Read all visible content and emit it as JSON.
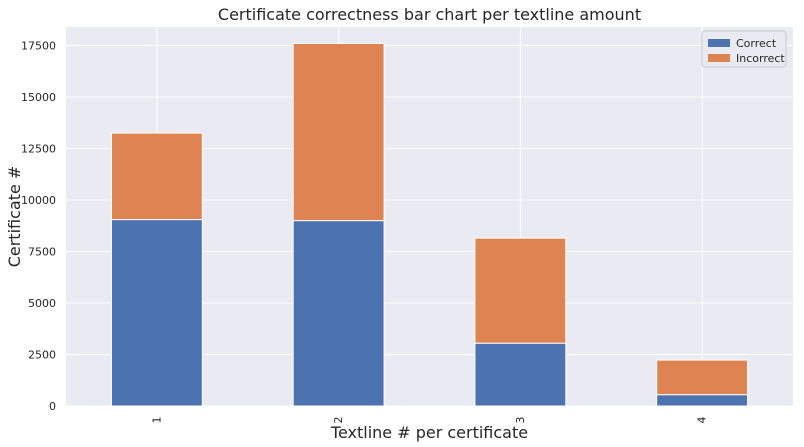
{
  "chart_data": {
    "type": "bar",
    "stacked": true,
    "title": "Certificate correctness bar chart per textline amount",
    "xlabel": "Textline # per certificate",
    "ylabel": "Certificate #",
    "categories": [
      "1",
      "2",
      "3",
      "4"
    ],
    "series": [
      {
        "name": "Correct",
        "values": [
          9050,
          9000,
          3050,
          550
        ],
        "color": "#4c72b0"
      },
      {
        "name": "Incorrect",
        "values": [
          4200,
          8600,
          5100,
          1680
        ],
        "color": "#dd8452"
      }
    ],
    "ylim": [
      0,
      18400
    ],
    "yticks": [
      0,
      2500,
      5000,
      7500,
      10000,
      12500,
      15000,
      17500
    ],
    "ytick_labels": [
      "0",
      "2500",
      "5000",
      "7500",
      "10000",
      "12500",
      "15000",
      "17500"
    ],
    "grid": true,
    "x_tick_rotation": "vertical",
    "legend_position": "top-right",
    "background_color": "#eaeaf2",
    "grid_color": "#ffffff"
  }
}
